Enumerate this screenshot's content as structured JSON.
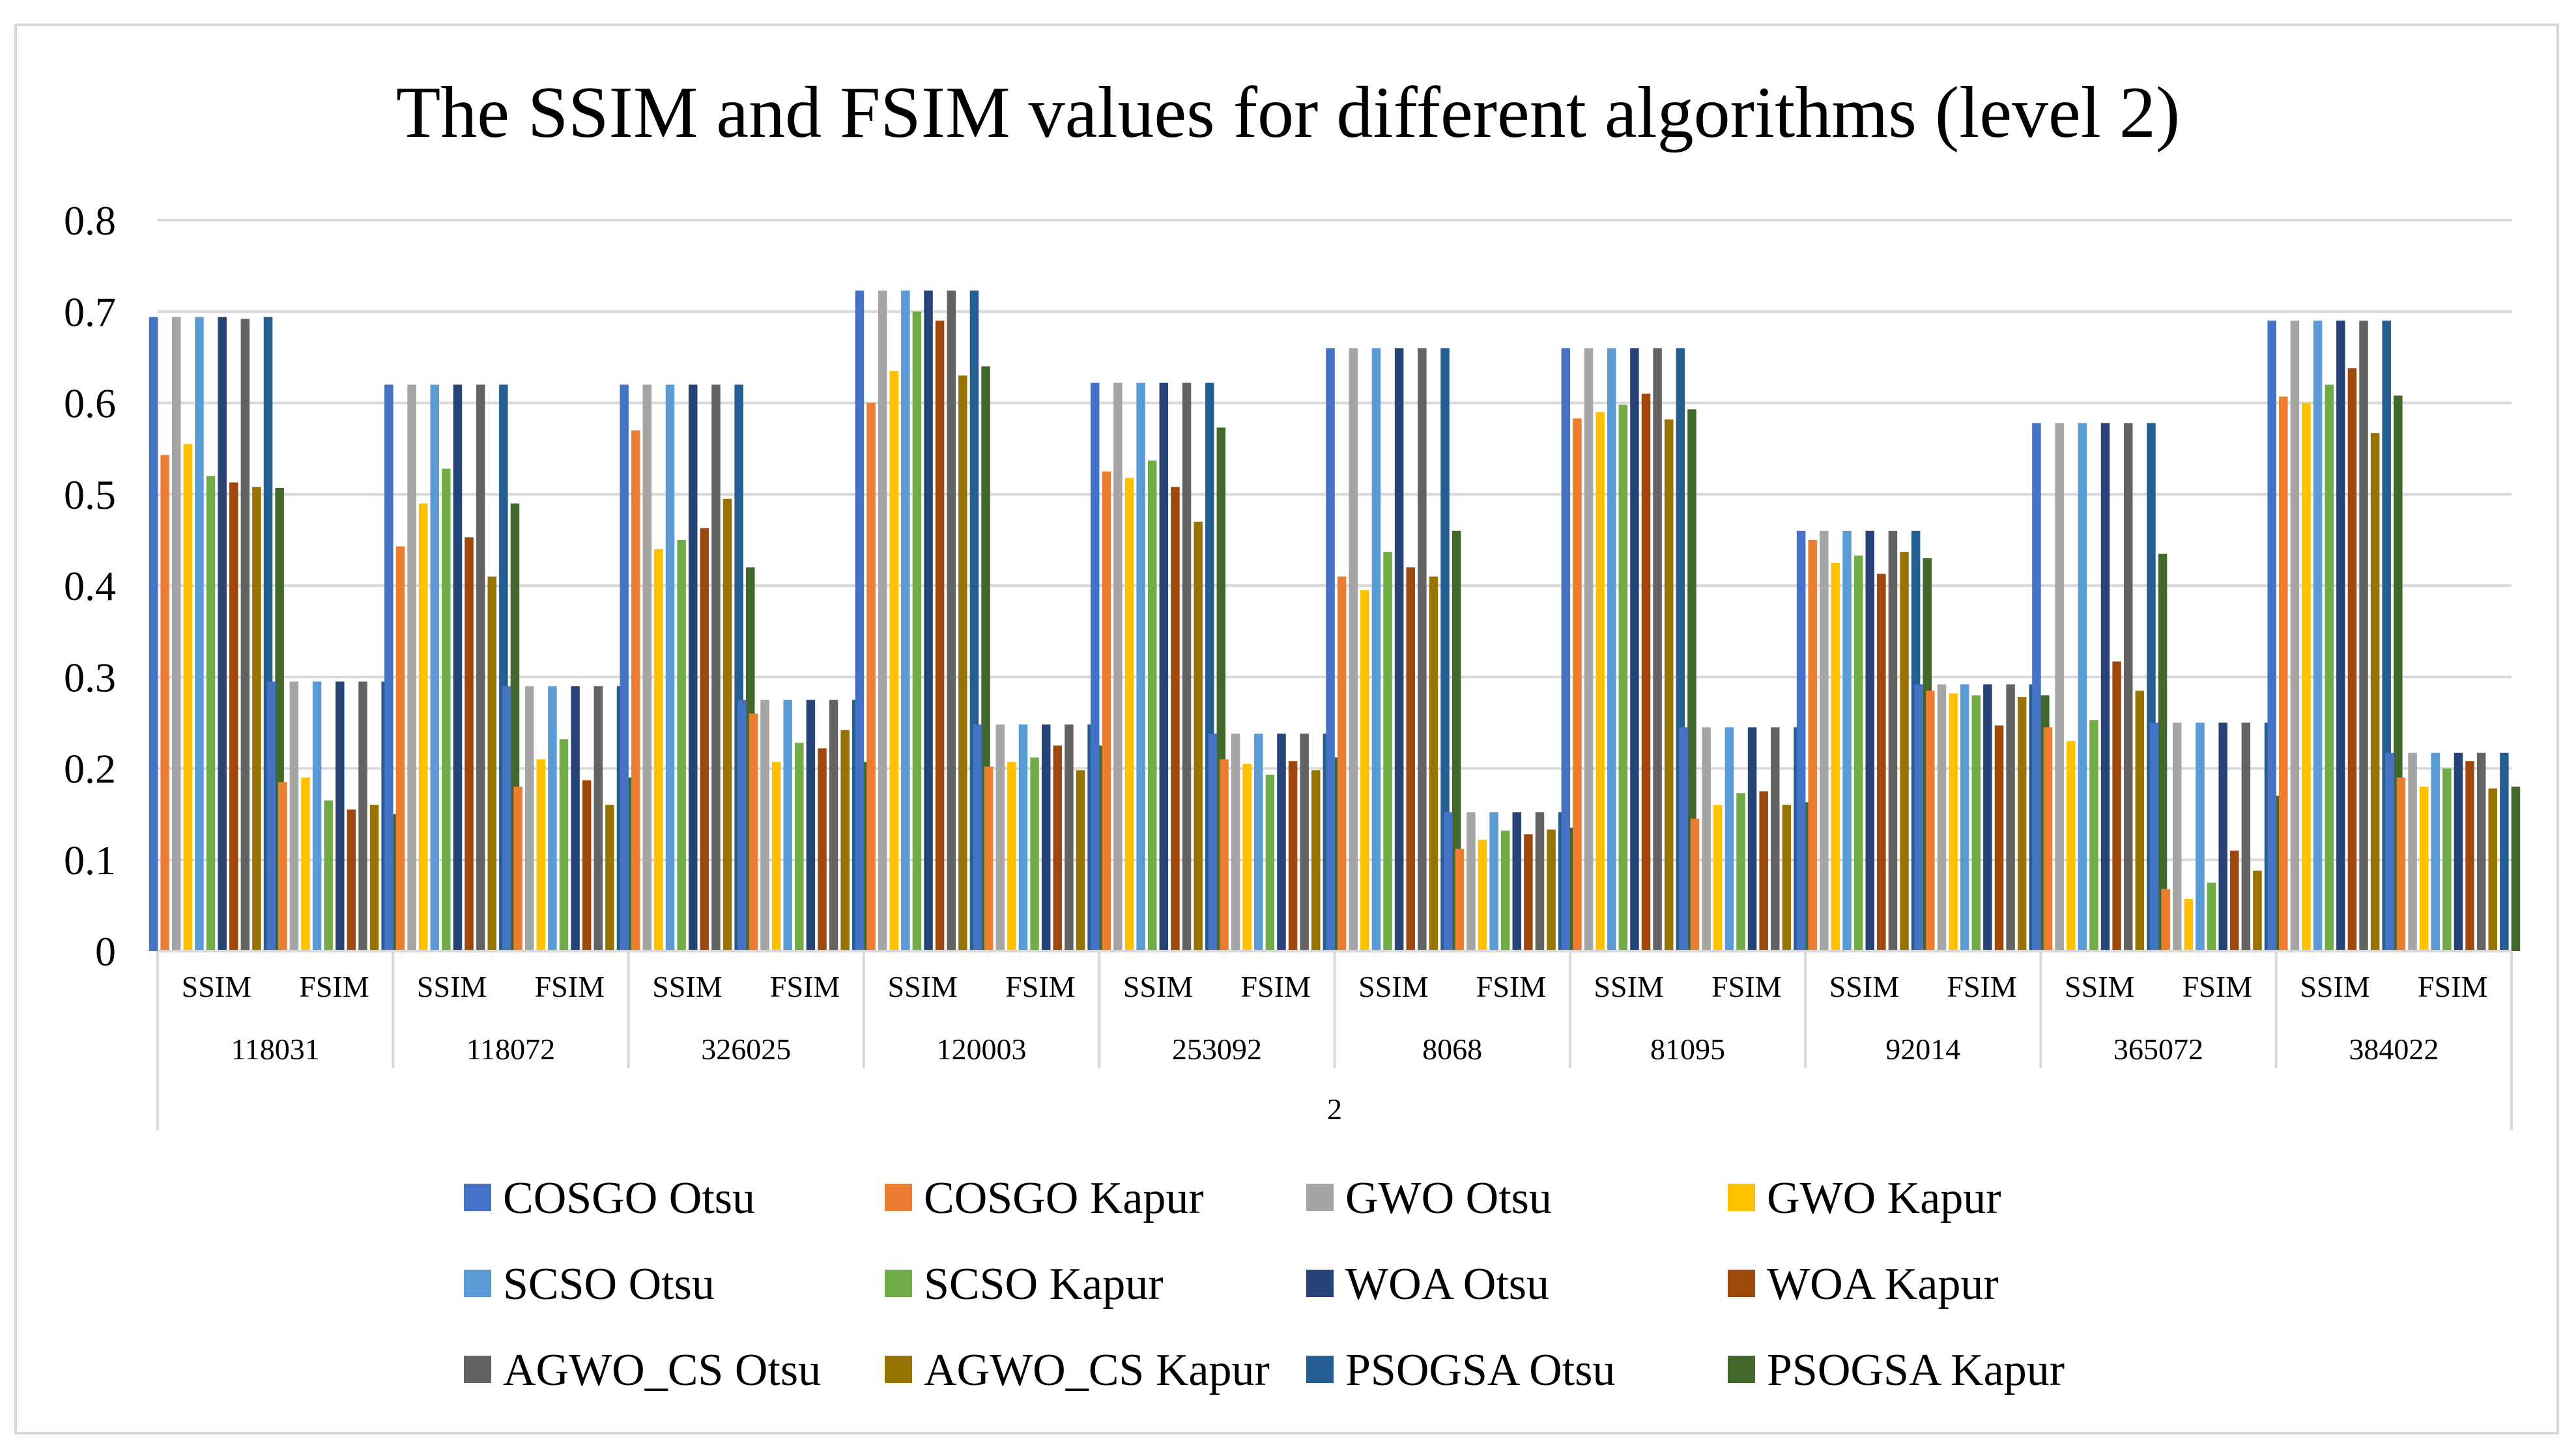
{
  "chart_data": {
    "type": "bar",
    "title": "The SSIM and FSIM values for different algorithms (level 2)",
    "xlabel": "",
    "ylabel": "",
    "ylim": [
      0,
      0.8
    ],
    "yticks": [
      "0",
      "0.1",
      "0.2",
      "0.3",
      "0.4",
      "0.5",
      "0.6",
      "0.7",
      "0.8"
    ],
    "grid": true,
    "legend_position": "bottom",
    "level_label": "2",
    "images": [
      "118031",
      "118072",
      "326025",
      "120003",
      "253092",
      "8068",
      "81095",
      "92014",
      "365072",
      "384022"
    ],
    "metrics": [
      "SSIM",
      "FSIM"
    ],
    "series": [
      {
        "name": "COSGO Otsu",
        "color": "#4472C4",
        "values": [
          [
            0.694,
            0.295
          ],
          [
            0.62,
            0.29
          ],
          [
            0.62,
            0.275
          ],
          [
            0.723,
            0.248
          ],
          [
            0.622,
            0.238
          ],
          [
            0.66,
            0.152
          ],
          [
            0.66,
            0.245
          ],
          [
            0.46,
            0.292
          ],
          [
            0.578,
            0.25
          ],
          [
            0.69,
            0.217
          ]
        ]
      },
      {
        "name": "COSGO Kapur",
        "color": "#ED7D31",
        "values": [
          [
            0.543,
            0.185
          ],
          [
            0.443,
            0.18
          ],
          [
            0.57,
            0.26
          ],
          [
            0.6,
            0.202
          ],
          [
            0.525,
            0.21
          ],
          [
            0.41,
            0.112
          ],
          [
            0.583,
            0.145
          ],
          [
            0.45,
            0.285
          ],
          [
            0.245,
            0.068
          ],
          [
            0.607,
            0.19
          ]
        ]
      },
      {
        "name": "GWO Otsu",
        "color": "#A5A5A5",
        "values": [
          [
            0.694,
            0.295
          ],
          [
            0.62,
            0.29
          ],
          [
            0.62,
            0.275
          ],
          [
            0.723,
            0.248
          ],
          [
            0.622,
            0.238
          ],
          [
            0.66,
            0.152
          ],
          [
            0.66,
            0.245
          ],
          [
            0.46,
            0.292
          ],
          [
            0.578,
            0.25
          ],
          [
            0.69,
            0.217
          ]
        ]
      },
      {
        "name": "GWO Kapur",
        "color": "#FFC000",
        "values": [
          [
            0.555,
            0.19
          ],
          [
            0.49,
            0.21
          ],
          [
            0.44,
            0.207
          ],
          [
            0.635,
            0.207
          ],
          [
            0.518,
            0.205
          ],
          [
            0.395,
            0.122
          ],
          [
            0.59,
            0.16
          ],
          [
            0.425,
            0.282
          ],
          [
            0.23,
            0.057
          ],
          [
            0.6,
            0.18
          ]
        ]
      },
      {
        "name": "SCSO Otsu",
        "color": "#5B9BD5",
        "values": [
          [
            0.694,
            0.295
          ],
          [
            0.62,
            0.29
          ],
          [
            0.62,
            0.275
          ],
          [
            0.723,
            0.248
          ],
          [
            0.622,
            0.238
          ],
          [
            0.66,
            0.152
          ],
          [
            0.66,
            0.245
          ],
          [
            0.46,
            0.292
          ],
          [
            0.578,
            0.25
          ],
          [
            0.69,
            0.217
          ]
        ]
      },
      {
        "name": "SCSO Kapur",
        "color": "#70AD47",
        "values": [
          [
            0.52,
            0.165
          ],
          [
            0.528,
            0.232
          ],
          [
            0.45,
            0.228
          ],
          [
            0.7,
            0.212
          ],
          [
            0.537,
            0.193
          ],
          [
            0.437,
            0.132
          ],
          [
            0.598,
            0.173
          ],
          [
            0.433,
            0.28
          ],
          [
            0.253,
            0.075
          ],
          [
            0.62,
            0.2
          ]
        ]
      },
      {
        "name": "WOA Otsu",
        "color": "#264478",
        "values": [
          [
            0.694,
            0.295
          ],
          [
            0.62,
            0.29
          ],
          [
            0.62,
            0.275
          ],
          [
            0.723,
            0.248
          ],
          [
            0.622,
            0.238
          ],
          [
            0.66,
            0.152
          ],
          [
            0.66,
            0.245
          ],
          [
            0.46,
            0.292
          ],
          [
            0.578,
            0.25
          ],
          [
            0.69,
            0.217
          ]
        ]
      },
      {
        "name": "WOA Kapur",
        "color": "#9E480E",
        "values": [
          [
            0.513,
            0.155
          ],
          [
            0.453,
            0.187
          ],
          [
            0.463,
            0.222
          ],
          [
            0.69,
            0.225
          ],
          [
            0.508,
            0.208
          ],
          [
            0.42,
            0.128
          ],
          [
            0.61,
            0.175
          ],
          [
            0.413,
            0.247
          ],
          [
            0.317,
            0.11
          ],
          [
            0.638,
            0.208
          ]
        ]
      },
      {
        "name": "AGWO_CS Otsu",
        "color": "#636363",
        "values": [
          [
            0.692,
            0.295
          ],
          [
            0.62,
            0.29
          ],
          [
            0.62,
            0.275
          ],
          [
            0.723,
            0.248
          ],
          [
            0.622,
            0.238
          ],
          [
            0.66,
            0.152
          ],
          [
            0.66,
            0.245
          ],
          [
            0.46,
            0.292
          ],
          [
            0.578,
            0.25
          ],
          [
            0.69,
            0.217
          ]
        ]
      },
      {
        "name": "AGWO_CS Kapur",
        "color": "#997300",
        "values": [
          [
            0.508,
            0.16
          ],
          [
            0.41,
            0.16
          ],
          [
            0.495,
            0.242
          ],
          [
            0.63,
            0.198
          ],
          [
            0.47,
            0.198
          ],
          [
            0.41,
            0.133
          ],
          [
            0.582,
            0.16
          ],
          [
            0.437,
            0.278
          ],
          [
            0.285,
            0.088
          ],
          [
            0.567,
            0.178
          ]
        ]
      },
      {
        "name": "PSOGSA Otsu",
        "color": "#255E91",
        "values": [
          [
            0.694,
            0.295
          ],
          [
            0.62,
            0.29
          ],
          [
            0.62,
            0.275
          ],
          [
            0.723,
            0.248
          ],
          [
            0.622,
            0.238
          ],
          [
            0.66,
            0.152
          ],
          [
            0.66,
            0.245
          ],
          [
            0.46,
            0.292
          ],
          [
            0.578,
            0.25
          ],
          [
            0.69,
            0.217
          ]
        ]
      },
      {
        "name": "PSOGSA Kapur",
        "color": "#43682B",
        "values": [
          [
            0.507,
            0.15
          ],
          [
            0.49,
            0.19
          ],
          [
            0.42,
            0.207
          ],
          [
            0.64,
            0.225
          ],
          [
            0.573,
            0.212
          ],
          [
            0.46,
            0.135
          ],
          [
            0.593,
            0.163
          ],
          [
            0.43,
            0.28
          ],
          [
            0.435,
            0.17
          ],
          [
            0.608,
            0.18
          ]
        ]
      }
    ]
  }
}
